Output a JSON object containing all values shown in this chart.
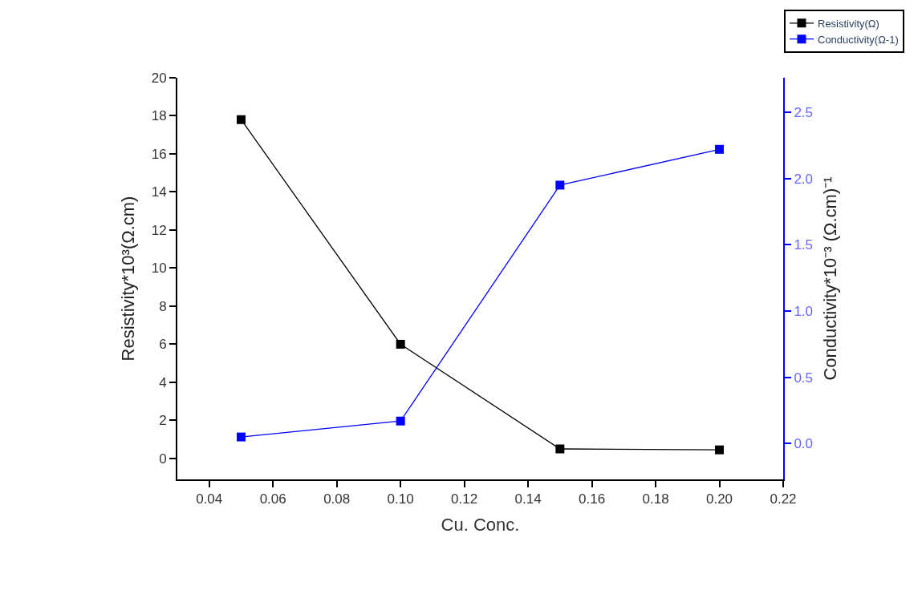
{
  "chart_data": {
    "type": "line",
    "xlabel": "Cu. Conc.",
    "ylabel": "Resistivity*10³(Ω.cm)",
    "y2label": "Conductivity*10⁻³ (Ω.cm)⁻¹",
    "x": [
      0.05,
      0.1,
      0.15,
      0.2
    ],
    "series": [
      {
        "name": "Resistivity(Ω)",
        "color": "#000000",
        "values": [
          17.8,
          6.0,
          0.5,
          0.45
        ]
      },
      {
        "name": "Conductivity(Ω-1)",
        "color": "#0000ff",
        "values": [
          0.05,
          0.17,
          1.95,
          2.22
        ],
        "axis": "y2"
      }
    ],
    "xlim": [
      0.03,
      0.22
    ],
    "xticks": [
      {
        "value": 0.04,
        "label": "0.04"
      },
      {
        "value": 0.06,
        "label": "0.06"
      },
      {
        "value": 0.08,
        "label": "0.08"
      },
      {
        "value": 0.1,
        "label": "0.10"
      },
      {
        "value": 0.12,
        "label": "0.12"
      },
      {
        "value": 0.14,
        "label": "0.14"
      },
      {
        "value": 0.16,
        "label": "0.16"
      },
      {
        "value": 0.18,
        "label": "0.18"
      },
      {
        "value": 0.2,
        "label": "0.20"
      },
      {
        "value": 0.22,
        "label": "0.22"
      }
    ],
    "ylim": [
      -1.1,
      20
    ],
    "yticks": [
      0,
      2,
      4,
      6,
      8,
      10,
      12,
      14,
      16,
      18,
      20
    ],
    "y2lim": [
      -0.27,
      2.76
    ],
    "y2ticks": [
      {
        "value": 0,
        "label": "0.0"
      },
      {
        "value": 0.5,
        "label": "0.5"
      },
      {
        "value": 1.0,
        "label": "1.0"
      },
      {
        "value": 1.5,
        "label": "1.5"
      },
      {
        "value": 2.0,
        "label": "2.0"
      },
      {
        "value": 2.5,
        "label": "2.5"
      }
    ],
    "legend": "top right",
    "marker": "square",
    "line_style": "solid"
  }
}
